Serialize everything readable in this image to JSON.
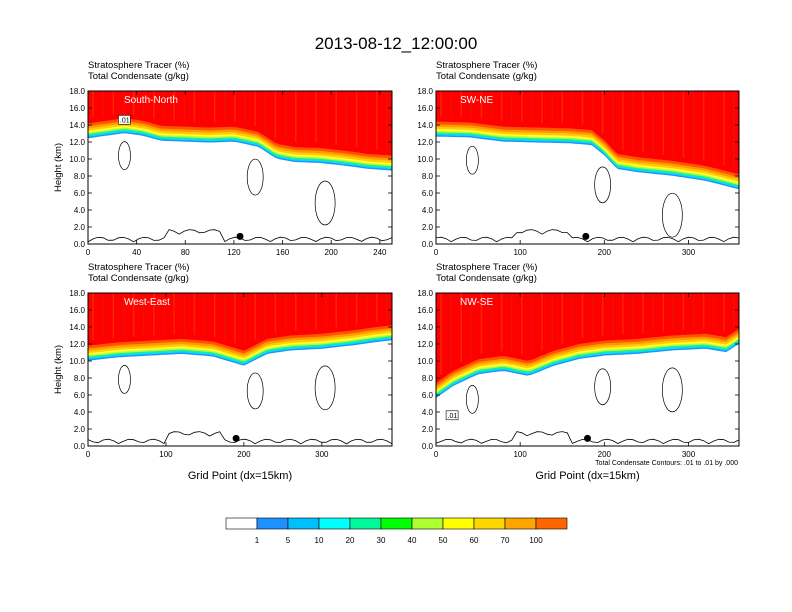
{
  "figure": {
    "title": "2013-08-12_12:00:00",
    "contour_note": "Total Condensate Contours: .01 to .01 by .000",
    "x_axis_title": "Grid Point (dx=15km)"
  },
  "chart_data": [
    {
      "type": "heatmap",
      "panel": "South-North",
      "title_line1": "Stratosphere Tracer   (%)",
      "title_line2": "Total Condensate   (g/kg)",
      "ylabel": "Height (km)",
      "xlabel": "",
      "xlim": [
        0,
        250
      ],
      "ylim": [
        0,
        18
      ],
      "xticks": [
        "0",
        "40",
        "80",
        "120",
        "160",
        "200",
        "240"
      ],
      "yticks": [
        "0.0",
        "2.0",
        "4.0",
        "6.0",
        "8.0",
        "10.0",
        "12.0",
        "14.0",
        "16.0",
        "18.0"
      ],
      "tracer_base_km": [
        [
          0,
          14.2
        ],
        [
          15,
          14.5
        ],
        [
          30,
          14.8
        ],
        [
          45,
          14.5
        ],
        [
          60,
          13.9
        ],
        [
          80,
          13.8
        ],
        [
          100,
          13.7
        ],
        [
          120,
          13.8
        ],
        [
          140,
          13.2
        ],
        [
          155,
          11.8
        ],
        [
          170,
          11.4
        ],
        [
          190,
          11.3
        ],
        [
          210,
          11.0
        ],
        [
          230,
          10.6
        ],
        [
          250,
          10.4
        ]
      ],
      "contour_label": ".01",
      "station_x": 125
    },
    {
      "type": "heatmap",
      "panel": "SW-NE",
      "title_line1": "Stratosphere Tracer   (%)",
      "title_line2": "Total Condensate   (g/kg)",
      "ylabel": "",
      "xlabel": "",
      "xlim": [
        0,
        360
      ],
      "ylim": [
        0,
        18
      ],
      "xticks": [
        "0",
        "100",
        "200",
        "300"
      ],
      "yticks": [
        "0.0",
        "2.0",
        "4.0",
        "6.0",
        "8.0",
        "10.0",
        "12.0",
        "14.0",
        "16.0",
        "18.0"
      ],
      "tracer_base_km": [
        [
          0,
          14.4
        ],
        [
          40,
          14.3
        ],
        [
          80,
          13.8
        ],
        [
          120,
          13.7
        ],
        [
          160,
          13.6
        ],
        [
          185,
          13.4
        ],
        [
          200,
          12.2
        ],
        [
          215,
          10.6
        ],
        [
          240,
          10.2
        ],
        [
          280,
          9.8
        ],
        [
          320,
          9.2
        ],
        [
          360,
          8.2
        ]
      ],
      "contour_label": "",
      "station_x": 178
    },
    {
      "type": "heatmap",
      "panel": "West-East",
      "title_line1": "Stratosphere Tracer   (%)",
      "title_line2": "Total Condensate   (g/kg)",
      "ylabel": "Height (km)",
      "xlabel": "Grid Point (dx=15km)",
      "xlim": [
        0,
        390
      ],
      "ylim": [
        0,
        18
      ],
      "xticks": [
        "0",
        "100",
        "200",
        "300"
      ],
      "yticks": [
        "0.0",
        "2.0",
        "4.0",
        "6.0",
        "8.0",
        "10.0",
        "12.0",
        "14.0",
        "16.0",
        "18.0"
      ],
      "tracer_base_km": [
        [
          0,
          11.8
        ],
        [
          40,
          12.2
        ],
        [
          80,
          12.4
        ],
        [
          120,
          12.6
        ],
        [
          160,
          12.3
        ],
        [
          200,
          11.2
        ],
        [
          230,
          12.6
        ],
        [
          260,
          13.0
        ],
        [
          300,
          13.2
        ],
        [
          340,
          13.6
        ],
        [
          370,
          14.0
        ],
        [
          390,
          14.2
        ]
      ],
      "contour_label": "",
      "station_x": 190
    },
    {
      "type": "heatmap",
      "panel": "NW-SE",
      "title_line1": "Stratosphere Tracer   (%)",
      "title_line2": "Total Condensate   (g/kg)",
      "ylabel": "",
      "xlabel": "Grid Point (dx=15km)",
      "xlim": [
        0,
        360
      ],
      "ylim": [
        0,
        18
      ],
      "xticks": [
        "0",
        "100",
        "200",
        "300"
      ],
      "yticks": [
        "0.0",
        "2.0",
        "4.0",
        "6.0",
        "8.0",
        "10.0",
        "12.0",
        "14.0",
        "16.0",
        "18.0"
      ],
      "tracer_base_km": [
        [
          0,
          7.4
        ],
        [
          20,
          8.8
        ],
        [
          50,
          10.2
        ],
        [
          80,
          10.6
        ],
        [
          110,
          10.0
        ],
        [
          140,
          11.2
        ],
        [
          170,
          12.0
        ],
        [
          200,
          12.4
        ],
        [
          240,
          12.6
        ],
        [
          280,
          13.0
        ],
        [
          320,
          13.2
        ],
        [
          345,
          12.8
        ],
        [
          360,
          13.8
        ]
      ],
      "contour_label": ".01",
      "station_x": 180
    }
  ],
  "colorbar": {
    "labels": [
      "1",
      "5",
      "10",
      "20",
      "30",
      "40",
      "50",
      "60",
      "70",
      "100"
    ],
    "colors": [
      "#ffffff",
      "#1e90ff",
      "#00bfff",
      "#00ffff",
      "#00fa9a",
      "#00ff00",
      "#adff2f",
      "#ffff00",
      "#ffd700",
      "#ffa500",
      "#ff6600",
      "#ff0000"
    ]
  }
}
